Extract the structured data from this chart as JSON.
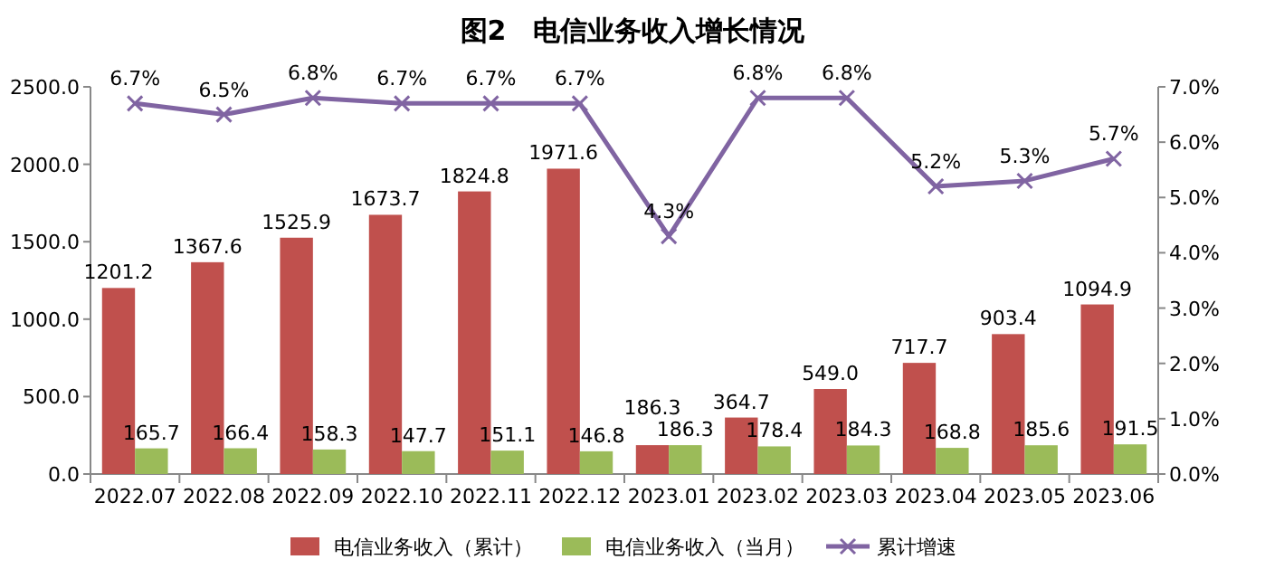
{
  "chart_data": {
    "type": "bar",
    "title": "图2　电信业务收入增长情况",
    "categories": [
      "2022.07",
      "2022.08",
      "2022.09",
      "2022.10",
      "2022.11",
      "2022.12",
      "2023.01",
      "2023.02",
      "2023.03",
      "2023.04",
      "2023.05",
      "2023.06"
    ],
    "series": [
      {
        "name": "电信业务收入（累计）",
        "color": "#c0504d",
        "values": [
          1201.2,
          1367.6,
          1525.9,
          1673.7,
          1824.8,
          1971.6,
          186.3,
          364.7,
          549.0,
          717.7,
          903.4,
          1094.9
        ],
        "value_labels": [
          "1201.2",
          "1367.6",
          "1525.9",
          "1673.7",
          "1824.8",
          "1971.6",
          "186.3",
          "364.7",
          "549.0",
          "717.7",
          "903.4",
          "1094.9"
        ]
      },
      {
        "name": "电信业务收入（当月）",
        "color": "#9bbb59",
        "values": [
          165.7,
          166.4,
          158.3,
          147.7,
          151.1,
          146.8,
          186.3,
          178.4,
          184.3,
          168.8,
          185.6,
          191.5
        ],
        "value_labels": [
          "165.7",
          "166.4",
          "158.3",
          "147.7",
          "151.1",
          "146.8",
          "186.3",
          "178.4",
          "184.3",
          "168.8",
          "185.6",
          "191.5"
        ]
      },
      {
        "name": "累计增速",
        "type": "line",
        "axis": "y2",
        "color": "#8064a2",
        "values": [
          6.7,
          6.5,
          6.8,
          6.7,
          6.7,
          6.7,
          4.3,
          6.8,
          6.8,
          5.2,
          5.3,
          5.7
        ],
        "value_labels": [
          "6.7%",
          "6.5%",
          "6.8%",
          "6.7%",
          "6.7%",
          "6.7%",
          "4.3%",
          "6.8%",
          "6.8%",
          "5.2%",
          "5.3%",
          "5.7%"
        ],
        "marker": "cross"
      }
    ],
    "ylim": [
      0,
      2500
    ],
    "yticks": [
      {
        "value": 0,
        "label": "0.0"
      },
      {
        "value": 500,
        "label": "500.0"
      },
      {
        "value": 1000,
        "label": "1000.0"
      },
      {
        "value": 1500,
        "label": "1500.0"
      },
      {
        "value": 2000,
        "label": "2000.0"
      },
      {
        "value": 2500,
        "label": "2500.0"
      }
    ],
    "y2lim": [
      0,
      7
    ],
    "y2ticks": [
      {
        "value": 0,
        "label": "0.0%"
      },
      {
        "value": 1,
        "label": "1.0%"
      },
      {
        "value": 2,
        "label": "2.0%"
      },
      {
        "value": 3,
        "label": "3.0%"
      },
      {
        "value": 4,
        "label": "4.0%"
      },
      {
        "value": 5,
        "label": "5.0%"
      },
      {
        "value": 6,
        "label": "6.0%"
      },
      {
        "value": 7,
        "label": "7.0%"
      }
    ],
    "legend": "bottom"
  }
}
